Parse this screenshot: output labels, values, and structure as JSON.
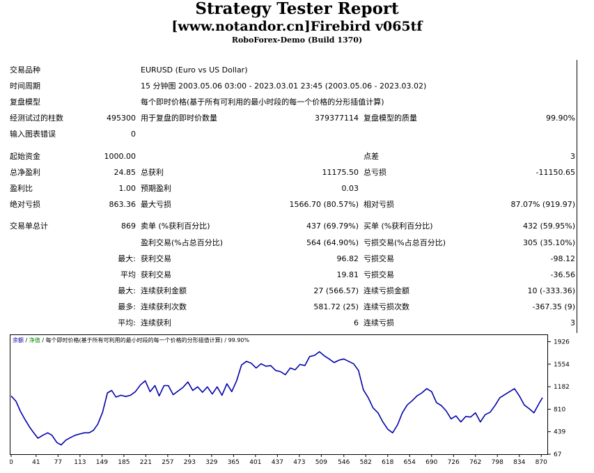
{
  "header": {
    "title": "Strategy Tester Report",
    "subtitle": "[www.notandor.cn]Firebird v065tf",
    "build": "RoboForex-Demo (Build 1370)"
  },
  "rows": [
    [
      {
        "t": "交易品种",
        "col": "a"
      },
      {
        "t": "EURUSD (Euro vs US Dollar)",
        "col": "bl"
      }
    ],
    [
      {
        "t": "时间周期",
        "col": "a"
      },
      {
        "t": "15 分钟图 2003.05.06 03:00 - 2023.03.01 23:45 (2003.05.06 - 2023.03.02)",
        "col": "bl"
      }
    ],
    [
      {
        "t": "复盘模型",
        "col": "a"
      },
      {
        "t": "每个即时价格(基于所有可利用的最小时段的每一个价格的分形插值计算)",
        "col": "bl"
      }
    ],
    [
      {
        "t": "经测试过的柱数",
        "col": "a"
      },
      {
        "t": "495300",
        "col": "b"
      },
      {
        "t": "用于复盘的即时价数量",
        "col": "c"
      },
      {
        "t": "379377114",
        "col": "d"
      },
      {
        "t": "复盘模型的质量",
        "col": "e"
      },
      {
        "t": "99.90%",
        "col": "f"
      }
    ],
    [
      {
        "t": "输入图表错误",
        "col": "a"
      },
      {
        "t": "0",
        "col": "b"
      }
    ],
    [
      {
        "t": "起始资金",
        "col": "a"
      },
      {
        "t": "1000.00",
        "col": "b"
      },
      {
        "t": "点差",
        "col": "e"
      },
      {
        "t": "3",
        "col": "f"
      }
    ],
    [
      {
        "t": "总净盈利",
        "col": "a"
      },
      {
        "t": "24.85",
        "col": "b"
      },
      {
        "t": "总获利",
        "col": "c"
      },
      {
        "t": "11175.50",
        "col": "d"
      },
      {
        "t": "总亏损",
        "col": "e"
      },
      {
        "t": "-11150.65",
        "col": "f"
      }
    ],
    [
      {
        "t": "盈利比",
        "col": "a"
      },
      {
        "t": "1.00",
        "col": "b"
      },
      {
        "t": "预期盈利",
        "col": "c"
      },
      {
        "t": "0.03",
        "col": "d"
      }
    ],
    [
      {
        "t": "绝对亏损",
        "col": "a"
      },
      {
        "t": "863.36",
        "col": "b"
      },
      {
        "t": "最大亏损",
        "col": "c"
      },
      {
        "t": "1566.70 (80.57%)",
        "col": "d"
      },
      {
        "t": "相对亏损",
        "col": "e"
      },
      {
        "t": "87.07% (919.97)",
        "col": "f"
      }
    ],
    [
      {
        "t": "交易单总计",
        "col": "a"
      },
      {
        "t": "869",
        "col": "b"
      },
      {
        "t": "卖单 (%获利百分比)",
        "col": "c"
      },
      {
        "t": "437 (69.79%)",
        "col": "d"
      },
      {
        "t": "买单 (%获利百分比)",
        "col": "e"
      },
      {
        "t": "432 (59.95%)",
        "col": "f"
      }
    ],
    [
      {
        "t": "盈利交易(%占总百分比)",
        "col": "c"
      },
      {
        "t": "564 (64.90%)",
        "col": "d"
      },
      {
        "t": "亏损交易(%占总百分比)",
        "col": "e"
      },
      {
        "t": "305 (35.10%)",
        "col": "f"
      }
    ],
    [
      {
        "t": "最大:",
        "col": "b"
      },
      {
        "t": "获利交易",
        "col": "c"
      },
      {
        "t": "96.82",
        "col": "d"
      },
      {
        "t": "亏损交易",
        "col": "e"
      },
      {
        "t": "-98.12",
        "col": "f"
      }
    ],
    [
      {
        "t": "平均",
        "col": "b"
      },
      {
        "t": "获利交易",
        "col": "c"
      },
      {
        "t": "19.81",
        "col": "d"
      },
      {
        "t": "亏损交易",
        "col": "e"
      },
      {
        "t": "-36.56",
        "col": "f"
      }
    ],
    [
      {
        "t": "最大:",
        "col": "b"
      },
      {
        "t": "连续获利金额",
        "col": "c"
      },
      {
        "t": "27 (566.57)",
        "col": "d"
      },
      {
        "t": "连续亏损金额",
        "col": "e"
      },
      {
        "t": "10 (-333.36)",
        "col": "f"
      }
    ],
    [
      {
        "t": "最多:",
        "col": "b"
      },
      {
        "t": "连续获利次数",
        "col": "c"
      },
      {
        "t": "581.72 (25)",
        "col": "d"
      },
      {
        "t": "连续亏损次数",
        "col": "e"
      },
      {
        "t": "-367.35 (9)",
        "col": "f"
      }
    ],
    [
      {
        "t": "平均:",
        "col": "b"
      },
      {
        "t": "连续获利",
        "col": "c"
      },
      {
        "t": "6",
        "col": "d"
      },
      {
        "t": "连续亏损",
        "col": "e"
      },
      {
        "t": "3",
        "col": "f"
      }
    ]
  ],
  "chart_data": {
    "type": "line",
    "legend": {
      "balance": "余额",
      "sep1": " / ",
      "equity": "净值",
      "sep2": " / ",
      "model": "每个即时价格(基于所有可利用的最小时段的每一个价格的分形插值计算)",
      "sep3": " / ",
      "quality": "99.90%"
    },
    "colors": {
      "balance": "#0000aa",
      "equity": "#008800",
      "text": "#000000"
    },
    "xticks": [
      0,
      41,
      77,
      113,
      149,
      185,
      221,
      257,
      293,
      329,
      365,
      401,
      437,
      473,
      509,
      546,
      582,
      618,
      654,
      690,
      726,
      762,
      798,
      834,
      870
    ],
    "yticks": [
      67,
      439,
      810,
      1182,
      1554,
      1926
    ],
    "xlim": [
      0,
      880
    ],
    "ylim": [
      67,
      2000
    ],
    "series": [
      {
        "x": [
          0,
          8,
          15,
          22,
          30,
          37,
          44,
          52,
          60,
          67,
          75,
          82,
          90,
          97,
          105,
          112,
          120,
          128,
          135,
          142,
          150,
          158,
          165,
          172,
          180,
          188,
          196,
          204,
          212,
          220,
          228,
          236,
          243,
          251,
          258,
          266,
          274,
          282,
          290,
          298,
          306,
          314,
          322,
          330,
          338,
          346,
          354,
          362,
          370,
          378,
          386,
          394,
          402,
          410,
          418,
          426,
          434,
          442,
          450,
          458,
          466,
          474,
          482,
          490,
          498,
          506,
          514,
          522,
          530,
          538,
          546,
          554,
          562,
          570,
          578,
          586,
          594,
          602,
          610,
          618,
          626,
          634,
          642,
          650,
          658,
          666,
          674,
          682,
          690,
          698,
          706,
          714,
          722,
          730,
          738,
          746,
          754,
          762,
          770,
          778,
          786,
          794,
          802,
          810,
          818,
          826,
          834,
          842,
          850,
          858,
          866,
          872
        ],
        "y": [
          1030,
          940,
          780,
          650,
          520,
          420,
          330,
          380,
          420,
          380,
          260,
          220,
          300,
          340,
          380,
          400,
          420,
          420,
          460,
          560,
          760,
          1080,
          1120,
          1010,
          1040,
          1020,
          1040,
          1100,
          1210,
          1280,
          1100,
          1200,
          1030,
          1200,
          1200,
          1050,
          1110,
          1170,
          1260,
          1120,
          1180,
          1090,
          1180,
          1060,
          1180,
          1040,
          1230,
          1100,
          1280,
          1540,
          1600,
          1570,
          1490,
          1560,
          1520,
          1530,
          1450,
          1430,
          1380,
          1490,
          1460,
          1550,
          1530,
          1680,
          1700,
          1760,
          1690,
          1640,
          1580,
          1620,
          1640,
          1600,
          1560,
          1450,
          1130,
          1000,
          830,
          750,
          600,
          480,
          420,
          550,
          750,
          880,
          950,
          1030,
          1080,
          1150,
          1100,
          920,
          870,
          780,
          650,
          700,
          600,
          690,
          680,
          750,
          600,
          720,
          760,
          870,
          1000,
          1050,
          1100,
          1150,
          1030,
          880,
          820,
          750,
          900,
          1000
        ]
      }
    ]
  }
}
